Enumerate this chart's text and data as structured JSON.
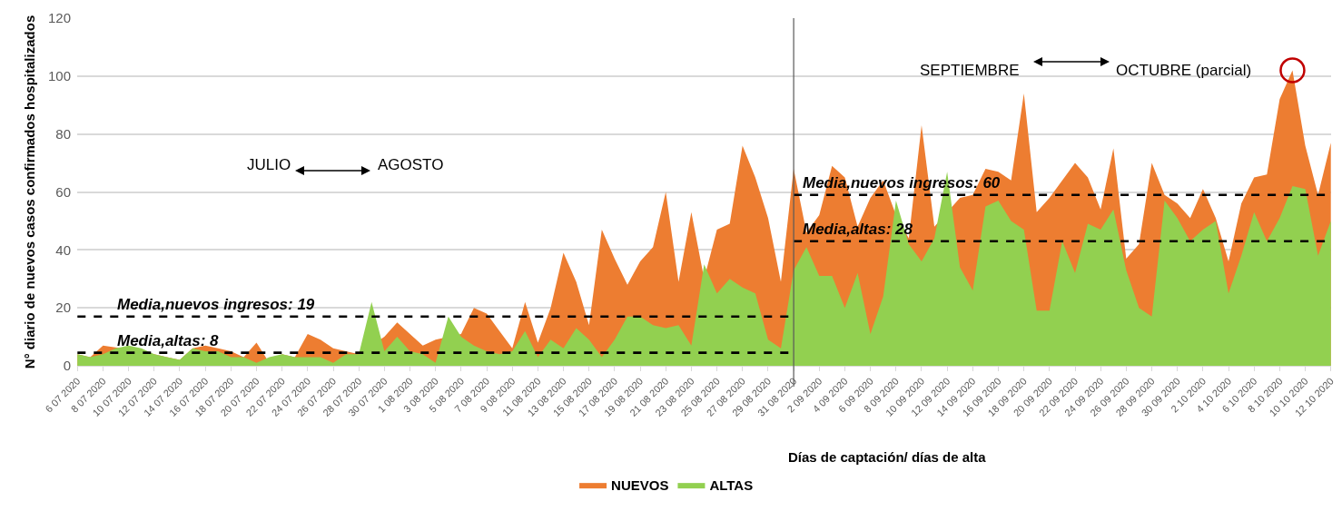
{
  "chart_data": {
    "type": "area",
    "ylabel": "N° diario de nuevos casos confirmados hospitalizados",
    "xlabel": "Días de captación/ días de alta",
    "categories": [
      "6 07 2020",
      null,
      "8 07 2020",
      null,
      "10 07 2020",
      null,
      "12 07 2020",
      null,
      "14 07 2020",
      null,
      "16 07 2020",
      null,
      "18 07 2020",
      null,
      "20 07 2020",
      null,
      "22 07 2020",
      null,
      "24 07 2020",
      null,
      "26 07 2020",
      null,
      "28 07 2020",
      null,
      "30 07 2020",
      null,
      "1 08 2020",
      null,
      "3 08 2020",
      null,
      "5 08 2020",
      null,
      "7 08 2020",
      null,
      "9 08 2020",
      null,
      "11 08 2020",
      null,
      "13 08 2020",
      null,
      "15 08 2020",
      null,
      "17 08 2020",
      null,
      "19 08 2020",
      null,
      "21 08 2020",
      null,
      "23 08 2020",
      null,
      "25 08 2020",
      null,
      "27 08 2020",
      null,
      "29 08 2020",
      null,
      "31 08 2020",
      null,
      "2 09 2020",
      null,
      "4 09 2020",
      null,
      "6 09 2020",
      null,
      "8 09 2020",
      null,
      "10 09 2020",
      null,
      "12 09 2020",
      null,
      "14 09 2020",
      null,
      "16 09 2020",
      null,
      "18 09 2020",
      null,
      "20 09 2020",
      null,
      "22 09 2020",
      null,
      "24 09 2020",
      null,
      "26 09 2020",
      null,
      "28 09 2020",
      null,
      "30 09 2020",
      null,
      "2 10 2020",
      null,
      "4 10 2020",
      null,
      "6 10 2020",
      null,
      "8 10 2020",
      null,
      "10 10 2020",
      null,
      "12 10 2020"
    ],
    "series": [
      {
        "name": "NUEVOS",
        "color": "#ed7d31",
        "values": [
          4,
          3,
          7,
          null,
          null,
          5,
          4,
          3,
          2,
          6,
          7,
          6,
          5,
          3,
          8,
          1,
          4,
          3,
          11,
          9,
          6,
          null,
          4,
          null,
          10,
          15,
          11,
          7,
          9,
          null,
          11,
          20,
          18,
          12,
          6,
          22,
          8,
          20,
          39,
          29,
          14,
          47,
          37,
          28,
          36,
          41,
          60,
          29,
          53,
          30,
          47,
          49,
          76,
          65,
          51,
          29,
          68,
          46,
          52,
          69,
          65,
          48,
          58,
          64,
          52,
          44,
          83,
          48,
          null,
          58,
          59,
          68,
          67,
          64,
          94,
          53,
          58,
          64,
          70,
          65,
          54,
          75,
          37,
          42,
          70,
          59,
          56,
          51,
          61,
          51,
          36,
          56,
          65,
          66,
          92,
          102,
          76,
          59,
          77
        ]
      },
      {
        "name": "ALTAS",
        "color": "#92d050",
        "values": [
          4,
          3,
          4,
          6,
          7,
          6,
          4,
          3,
          2,
          6,
          5,
          5,
          3,
          3,
          1,
          3,
          4,
          3,
          3,
          3,
          1,
          4,
          4,
          22,
          5,
          10,
          5,
          4,
          1,
          17,
          10,
          7,
          5,
          4,
          5,
          12,
          3,
          9,
          6,
          13,
          9,
          3,
          9,
          17,
          17,
          14,
          13,
          14,
          7,
          35,
          25,
          30,
          27,
          25,
          9,
          6,
          33,
          41,
          31,
          31,
          20,
          32,
          11,
          24,
          57,
          42,
          36,
          44,
          67,
          34,
          26,
          55,
          57,
          50,
          47,
          19,
          19,
          43,
          32,
          49,
          47,
          54,
          33,
          20,
          17,
          57,
          51,
          43,
          47,
          50,
          25,
          38,
          53,
          43,
          51,
          62,
          61,
          38,
          50
        ]
      },
      {
        "type": "line",
        "name": "Media,nuevos ingresos: 19",
        "color": "#000000",
        "line_style": "dashed",
        "values": [
          17,
          null,
          null,
          null,
          null,
          null,
          null,
          null,
          null,
          null,
          null,
          null,
          null,
          null,
          null,
          null,
          null,
          null,
          null,
          null,
          null,
          null,
          null,
          null,
          null,
          null,
          null,
          null,
          null,
          null,
          null,
          null,
          null,
          null,
          null,
          null,
          null,
          null,
          null,
          null,
          null,
          null,
          null,
          null,
          null,
          null,
          null,
          null,
          null,
          null,
          null,
          null,
          null,
          null,
          null,
          null,
          17,
          null,
          null,
          null,
          null,
          null,
          null,
          null,
          null,
          null,
          null,
          null,
          null,
          null,
          null,
          null,
          null,
          null,
          null,
          null,
          null,
          null,
          null,
          null,
          null,
          null,
          null,
          null,
          null,
          null,
          null,
          null,
          null,
          null,
          null,
          null,
          null,
          null,
          null,
          null,
          null,
          null,
          null
        ]
      },
      {
        "type": "line",
        "name": "Media,altas: 8",
        "color": "#000000",
        "line_style": "dashed",
        "values": [
          4.5,
          null,
          null,
          null,
          null,
          null,
          null,
          null,
          null,
          null,
          null,
          null,
          null,
          null,
          null,
          null,
          null,
          null,
          null,
          null,
          null,
          null,
          null,
          null,
          null,
          null,
          null,
          null,
          null,
          null,
          null,
          null,
          null,
          null,
          null,
          null,
          null,
          null,
          null,
          null,
          null,
          null,
          null,
          null,
          null,
          null,
          null,
          null,
          null,
          null,
          null,
          null,
          null,
          null,
          null,
          null,
          4.5,
          null,
          null,
          null,
          null,
          null,
          null,
          null,
          null,
          null,
          null,
          null,
          null,
          null,
          null,
          null,
          null,
          null,
          null,
          null,
          null,
          null,
          null,
          null,
          null,
          null,
          null,
          null,
          null,
          null,
          null,
          null,
          null,
          null,
          null,
          null,
          null,
          null,
          null,
          null,
          null,
          null,
          null
        ]
      },
      {
        "type": "line",
        "name": "Media,nuevos ingresos: 60",
        "color": "#000000",
        "line_style": "dashed",
        "values": [
          null,
          null,
          null,
          null,
          null,
          null,
          null,
          null,
          null,
          null,
          null,
          null,
          null,
          null,
          null,
          null,
          null,
          null,
          null,
          null,
          null,
          null,
          null,
          null,
          null,
          null,
          null,
          null,
          null,
          null,
          null,
          null,
          null,
          null,
          null,
          null,
          null,
          null,
          null,
          null,
          null,
          null,
          null,
          null,
          null,
          null,
          null,
          null,
          null,
          null,
          null,
          null,
          null,
          null,
          null,
          null,
          59,
          null,
          null,
          null,
          null,
          null,
          null,
          null,
          null,
          null,
          null,
          null,
          null,
          null,
          null,
          null,
          null,
          null,
          null,
          null,
          null,
          null,
          null,
          null,
          null,
          null,
          null,
          null,
          null,
          null,
          null,
          null,
          null,
          null,
          null,
          null,
          null,
          null,
          null,
          null,
          null,
          null,
          59
        ]
      },
      {
        "type": "line",
        "name": "Media,altas: 28",
        "color": "#000000",
        "line_style": "dashed",
        "values": [
          null,
          null,
          null,
          null,
          null,
          null,
          null,
          null,
          null,
          null,
          null,
          null,
          null,
          null,
          null,
          null,
          null,
          null,
          null,
          null,
          null,
          null,
          null,
          null,
          null,
          null,
          null,
          null,
          null,
          null,
          null,
          null,
          null,
          null,
          null,
          null,
          null,
          null,
          null,
          null,
          null,
          null,
          null,
          null,
          null,
          null,
          null,
          null,
          null,
          null,
          null,
          null,
          null,
          null,
          null,
          null,
          43,
          null,
          null,
          null,
          null,
          null,
          null,
          null,
          null,
          null,
          null,
          null,
          null,
          null,
          null,
          null,
          null,
          null,
          null,
          null,
          null,
          null,
          null,
          null,
          null,
          null,
          null,
          null,
          null,
          null,
          null,
          null,
          null,
          null,
          null,
          null,
          null,
          null,
          null,
          null,
          null,
          null,
          43
        ]
      }
    ],
    "ref_lines": [
      {
        "axis": "x",
        "value": "31 08 2020",
        "color": "#595959"
      }
    ],
    "annotations": [
      "JULIO",
      "AGOSTO",
      "SEPTIEMBRE",
      "OCTUBRE (parcial)"
    ],
    "ylim": [
      0,
      120
    ],
    "yticks": [
      0,
      20,
      40,
      60,
      80,
      100,
      120
    ],
    "grid": "y",
    "legend": "bottom"
  }
}
